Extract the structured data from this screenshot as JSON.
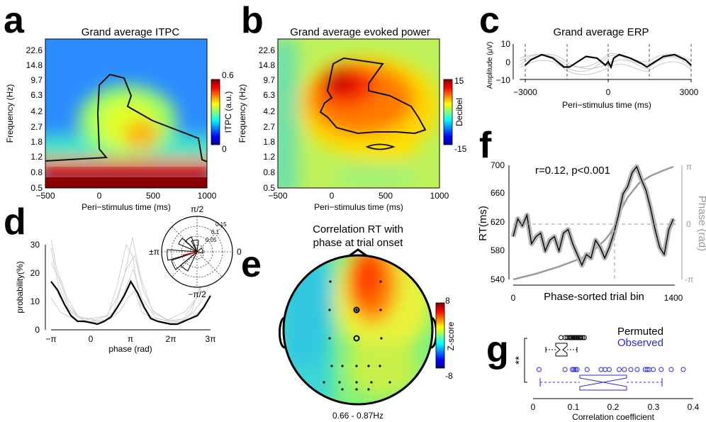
{
  "chart_data": [
    {
      "panel": "a",
      "type": "heatmap",
      "title": "Grand average ITPC",
      "xlabel": "Peri−stimulus time (ms)",
      "ylabel": "Frequency (Hz)",
      "x_ticks": [
        "−500",
        "0",
        "500",
        "1000"
      ],
      "y_ticks": [
        "0.5",
        "0.8",
        "1.2",
        "1.8",
        "2.7",
        "4.2",
        "6.3",
        "9.7",
        "14.8",
        "22.6"
      ],
      "colorbar": {
        "label": "ITPC (a.u.)",
        "max": "0.6",
        "min": "0"
      }
    },
    {
      "panel": "b",
      "type": "heatmap",
      "title": "Grand average evoked power",
      "xlabel": "Peri−stimulus time (ms)",
      "ylabel": "Frequency (Hz)",
      "x_ticks": [
        "−500",
        "0",
        "500",
        "1000"
      ],
      "y_ticks": [
        "0.5",
        "0.8",
        "1.2",
        "1.8",
        "2.7",
        "4.2",
        "6.3",
        "9.7",
        "14.8",
        "22.6"
      ],
      "colorbar": {
        "label": "Decibel",
        "max": "15",
        "min": "-15"
      }
    },
    {
      "panel": "c",
      "type": "line",
      "title": "Grand average ERP",
      "xlabel": "Peri−stimulus time (ms)",
      "ylabel": "Amplitude (μV)",
      "x_ticks": [
        "−3000",
        "0",
        "3000"
      ],
      "y_ticks": [
        "10",
        "0",
        "−10"
      ],
      "xlim": [
        -3000,
        3000
      ],
      "ylim": [
        -10,
        10
      ],
      "x": [
        -3000,
        -2800,
        -2400,
        -2000,
        -1600,
        -1400,
        -1200,
        -800,
        -400,
        -100,
        0,
        100,
        200,
        400,
        800,
        1200,
        1400,
        1600,
        2000,
        2400,
        2800,
        3000
      ],
      "y": [
        -2,
        1,
        4,
        2,
        -3,
        -3,
        -1,
        3,
        2,
        -2,
        0,
        -3,
        2,
        4,
        2,
        -1,
        -3,
        -1,
        3,
        4,
        1,
        -2
      ]
    },
    {
      "panel": "d",
      "type": "line",
      "xlabel": "phase (rad)",
      "ylabel": "probability(%)",
      "x_ticks": [
        "−π",
        "0",
        "π",
        "2π",
        "3π"
      ],
      "y_ticks": [
        "0",
        "10",
        "20",
        "30"
      ],
      "ylim": [
        0,
        30
      ],
      "x": [
        -3.14,
        -2.62,
        -2.09,
        -1.57,
        -1.05,
        -0.52,
        0,
        0.52,
        1.05,
        1.57,
        2.09,
        2.62,
        3.14,
        3.67,
        4.19,
        4.71,
        5.24,
        5.76,
        6.28,
        6.81,
        7.33,
        7.85,
        8.38,
        8.9,
        9.42
      ],
      "y": [
        17,
        14,
        9,
        5,
        3,
        3,
        2.5,
        2,
        3,
        4.5,
        8,
        12,
        17,
        13,
        8,
        4,
        3,
        2.5,
        2,
        2,
        3,
        4,
        5,
        8,
        12
      ],
      "polar_inset": {
        "labels": [
          "π/2",
          "±π",
          "0",
          "−π/2"
        ],
        "radial_ticks": [
          "0.05",
          "0.1",
          "0.15"
        ]
      }
    },
    {
      "panel": "e",
      "type": "heatmap",
      "title_lines": [
        "Correlation RT with",
        "phase at trial onset"
      ],
      "caption": "0.66 - 0.87Hz",
      "colorbar": {
        "label": "Z-score",
        "max": "8",
        "min": "-8"
      }
    },
    {
      "panel": "f",
      "type": "line",
      "annotation": "r=0.12, p<0.001",
      "xlabel": "Phase-sorted trial bin",
      "ylabel": "RT(ms)",
      "ylabel_right": "Phase (rad)",
      "x_ticks": [
        "0",
        "1400"
      ],
      "y_ticks": [
        "540",
        "580",
        "620",
        "660",
        "700"
      ],
      "y_right_ticks": [
        "π",
        "0",
        "-π"
      ],
      "xlim": [
        0,
        1400
      ],
      "ylim": [
        540,
        700
      ],
      "series": [
        {
          "x": [
            0,
            40,
            80,
            120,
            160,
            200,
            240,
            280,
            320,
            360,
            400,
            440,
            480,
            520,
            560,
            600,
            640,
            680,
            720,
            760,
            800,
            840,
            880,
            920,
            960,
            1000,
            1040,
            1080,
            1120,
            1160,
            1200,
            1240,
            1280,
            1320,
            1360,
            1400
          ],
          "y": [
            600,
            625,
            615,
            630,
            590,
            600,
            605,
            580,
            595,
            600,
            580,
            605,
            610,
            590,
            575,
            560,
            575,
            570,
            595,
            585,
            570,
            585,
            605,
            630,
            660,
            670,
            690,
            698,
            680,
            665,
            640,
            610,
            585,
            575,
            610,
            625
          ]
        },
        {
          "x": [
            0,
            200,
            400,
            600,
            700,
            800,
            850,
            900,
            950,
            1000,
            1050,
            1100,
            1200,
            1300,
            1400
          ],
          "y": [
            540,
            548,
            558,
            570,
            580,
            595,
            605,
            620,
            640,
            655,
            665,
            675,
            685,
            692,
            698
          ]
        }
      ]
    },
    {
      "panel": "g",
      "type": "scatter",
      "legend": [
        "Permuted",
        "Observed"
      ],
      "significance": "**",
      "xlabel": "Correlation coefficient",
      "x_ticks": [
        "0",
        "0.1",
        "0.2",
        "0.3",
        "0.4"
      ],
      "xlim": [
        0,
        0.4
      ],
      "series": [
        {
          "name": "Permuted",
          "color": "#000000",
          "values": [
            0.07,
            0.08,
            0.085,
            0.09,
            0.093,
            0.096,
            0.099,
            0.102,
            0.105,
            0.108,
            0.111,
            0.114,
            0.117,
            0.12,
            0.124,
            0.128
          ]
        },
        {
          "name": "Observed",
          "color": "#2a2ad8",
          "values": [
            0.015,
            0.08,
            0.098,
            0.102,
            0.106,
            0.11,
            0.135,
            0.17,
            0.18,
            0.19,
            0.215,
            0.228,
            0.244,
            0.26,
            0.28,
            0.285,
            0.29,
            0.3,
            0.32,
            0.345,
            0.375
          ]
        }
      ]
    }
  ]
}
